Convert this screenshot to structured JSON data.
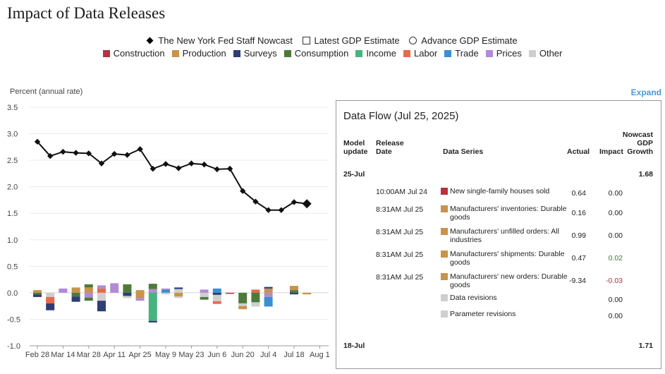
{
  "title": "Impact of Data Releases",
  "legend": {
    "markers": [
      {
        "label": "The New York Fed Staff Nowcast",
        "shape": "diamond"
      },
      {
        "label": "Latest GDP Estimate",
        "shape": "square"
      },
      {
        "label": "Advance GDP Estimate",
        "shape": "circle"
      }
    ],
    "categories": [
      {
        "label": "Construction",
        "color": "#b5323e"
      },
      {
        "label": "Production",
        "color": "#c8934a"
      },
      {
        "label": "Surveys",
        "color": "#2e3e72"
      },
      {
        "label": "Consumption",
        "color": "#4d7a3c"
      },
      {
        "label": "Income",
        "color": "#47b47f"
      },
      {
        "label": "Labor",
        "color": "#e8684a"
      },
      {
        "label": "Trade",
        "color": "#3b8fd0"
      },
      {
        "label": "Prices",
        "color": "#b28ad6"
      },
      {
        "label": "Other",
        "color": "#cfcfcf"
      }
    ]
  },
  "expand_label": "Expand",
  "chart_data": {
    "type": "bar+line",
    "ylabel": "Percent (annual rate)",
    "ylim": [
      -1.0,
      3.5
    ],
    "yticks": [
      "3.5",
      "3.0",
      "2.5",
      "2.0",
      "1.5",
      "1.0",
      "0.5",
      "0.0",
      "-0.5",
      "-1.0"
    ],
    "xticks": [
      "Feb 28",
      "Mar 14",
      "Mar 28",
      "Apr 11",
      "Apr 25",
      "May 9",
      "May 23",
      "Jun 6",
      "Jun 20",
      "Jul 4",
      "Jul 18",
      "Aug 1"
    ],
    "weeks": [
      "Feb 28",
      "Mar 7",
      "Mar 14",
      "Mar 21",
      "Mar 28",
      "Apr 4",
      "Apr 11",
      "Apr 18",
      "Apr 25",
      "May 2",
      "May 9",
      "May 16",
      "May 23",
      "May 30",
      "Jun 6",
      "Jun 13",
      "Jun 20",
      "Jun 27",
      "Jul 4",
      "Jul 11",
      "Jul 18",
      "Jul 25",
      "Aug 1"
    ],
    "nowcast": [
      2.85,
      2.58,
      2.66,
      2.64,
      2.63,
      2.44,
      2.62,
      2.6,
      2.71,
      2.34,
      2.43,
      2.35,
      2.44,
      2.42,
      2.33,
      2.34,
      1.92,
      1.72,
      1.56,
      1.56,
      1.71,
      1.68,
      null
    ],
    "contributions": [
      [
        [
          "Production",
          0.05
        ],
        [
          "Consumption",
          -0.03
        ],
        [
          "Surveys",
          -0.05
        ]
      ],
      [
        [
          "Other",
          -0.08
        ],
        [
          "Labor",
          -0.12
        ],
        [
          "Surveys",
          -0.13
        ]
      ],
      [
        [
          "Prices",
          0.08
        ]
      ],
      [
        [
          "Production",
          0.1
        ],
        [
          "Consumption",
          -0.07
        ],
        [
          "Surveys",
          -0.1
        ]
      ],
      [
        [
          "Production",
          0.1
        ],
        [
          "Consumption",
          0.06
        ],
        [
          "Prices",
          -0.09
        ],
        [
          "Consumption",
          -0.06
        ]
      ],
      [
        [
          "Labor",
          0.08
        ],
        [
          "Prices",
          0.06
        ],
        [
          "Other",
          -0.15
        ],
        [
          "Surveys",
          -0.2
        ]
      ],
      [
        [
          "Prices",
          0.18
        ]
      ],
      [
        [
          "Consumption",
          0.16
        ],
        [
          "Surveys",
          -0.06
        ],
        [
          "Other",
          -0.04
        ]
      ],
      [
        [
          "Production",
          0.05
        ],
        [
          "Production",
          -0.1
        ],
        [
          "Prices",
          -0.05
        ]
      ],
      [
        [
          "Prices",
          0.07
        ],
        [
          "Consumption",
          0.1
        ],
        [
          "Income",
          -0.53
        ],
        [
          "Surveys",
          -0.03
        ]
      ],
      [
        [
          "Trade",
          0.06
        ],
        [
          "Prices",
          0.02
        ],
        [
          "Other",
          -0.03
        ]
      ],
      [
        [
          "Other",
          0.07
        ],
        [
          "Surveys",
          0.03
        ],
        [
          "Production",
          -0.07
        ],
        [
          "Other",
          -0.03
        ]
      ],
      [],
      [
        [
          "Prices",
          0.06
        ],
        [
          "Other",
          -0.08
        ],
        [
          "Consumption",
          -0.05
        ]
      ],
      [
        [
          "Trade",
          0.08
        ],
        [
          "Surveys",
          -0.04
        ],
        [
          "Other",
          -0.12
        ],
        [
          "Labor",
          -0.05
        ]
      ],
      [
        [
          "Construction",
          -0.02
        ]
      ],
      [
        [
          "Consumption",
          -0.2
        ],
        [
          "Other",
          -0.05
        ],
        [
          "Production",
          -0.06
        ]
      ],
      [
        [
          "Labor",
          0.06
        ],
        [
          "Consumption",
          -0.18
        ],
        [
          "Other",
          -0.08
        ]
      ],
      [
        [
          "Production",
          0.08
        ],
        [
          "Surveys",
          0.03
        ],
        [
          "Prices",
          -0.08
        ],
        [
          "Trade",
          -0.18
        ]
      ],
      [],
      [
        [
          "Consumption",
          0.05
        ],
        [
          "Production",
          0.08
        ],
        [
          "Surveys",
          -0.03
        ]
      ],
      [
        [
          "Production",
          -0.03
        ]
      ],
      []
    ]
  },
  "data_flow": {
    "title": "Data Flow (Jul 25, 2025)",
    "headers": {
      "model_update": [
        "Model",
        "update"
      ],
      "release_date": [
        "Release",
        "Date"
      ],
      "data_series": "Data Series",
      "actual": "Actual",
      "impact": "Impact",
      "nowcast": [
        "Nowcast",
        "GDP",
        "Growth"
      ]
    },
    "groups": [
      {
        "date": "25-Jul",
        "nowcast": "1.68"
      },
      {
        "date": "18-Jul",
        "nowcast": "1.71"
      }
    ],
    "rows": [
      {
        "release": "10:00AM Jul 24",
        "series": "New single-family houses sold",
        "category": "Construction",
        "color": "#b5323e",
        "actual": "0.64",
        "impact": "0.00"
      },
      {
        "release": "8:31AM Jul 25",
        "series": "Manufacturers' inventories: Durable goods",
        "category": "Production",
        "color": "#c8934a",
        "actual": "0.16",
        "impact": "0.00"
      },
      {
        "release": "8:31AM Jul 25",
        "series": "Manufacturers' unfilled orders: All industries",
        "category": "Production",
        "color": "#c8934a",
        "actual": "0.99",
        "impact": "0.00"
      },
      {
        "release": "8:31AM Jul 25",
        "series": "Manufacturers' shipments: Durable goods",
        "category": "Production",
        "color": "#c8934a",
        "actual": "0.47",
        "impact": "0.02"
      },
      {
        "release": "8:31AM Jul 25",
        "series": "Manufacturers' new orders: Durable goods",
        "category": "Production",
        "color": "#c8934a",
        "actual": "-9.34",
        "impact": "-0.03"
      },
      {
        "release": "",
        "series": "Data revisions",
        "category": "Other",
        "color": "#cfcfcf",
        "actual": "",
        "impact": "0.00"
      },
      {
        "release": "",
        "series": "Parameter revisions",
        "category": "Other",
        "color": "#cfcfcf",
        "actual": "",
        "impact": "0.00"
      }
    ]
  }
}
